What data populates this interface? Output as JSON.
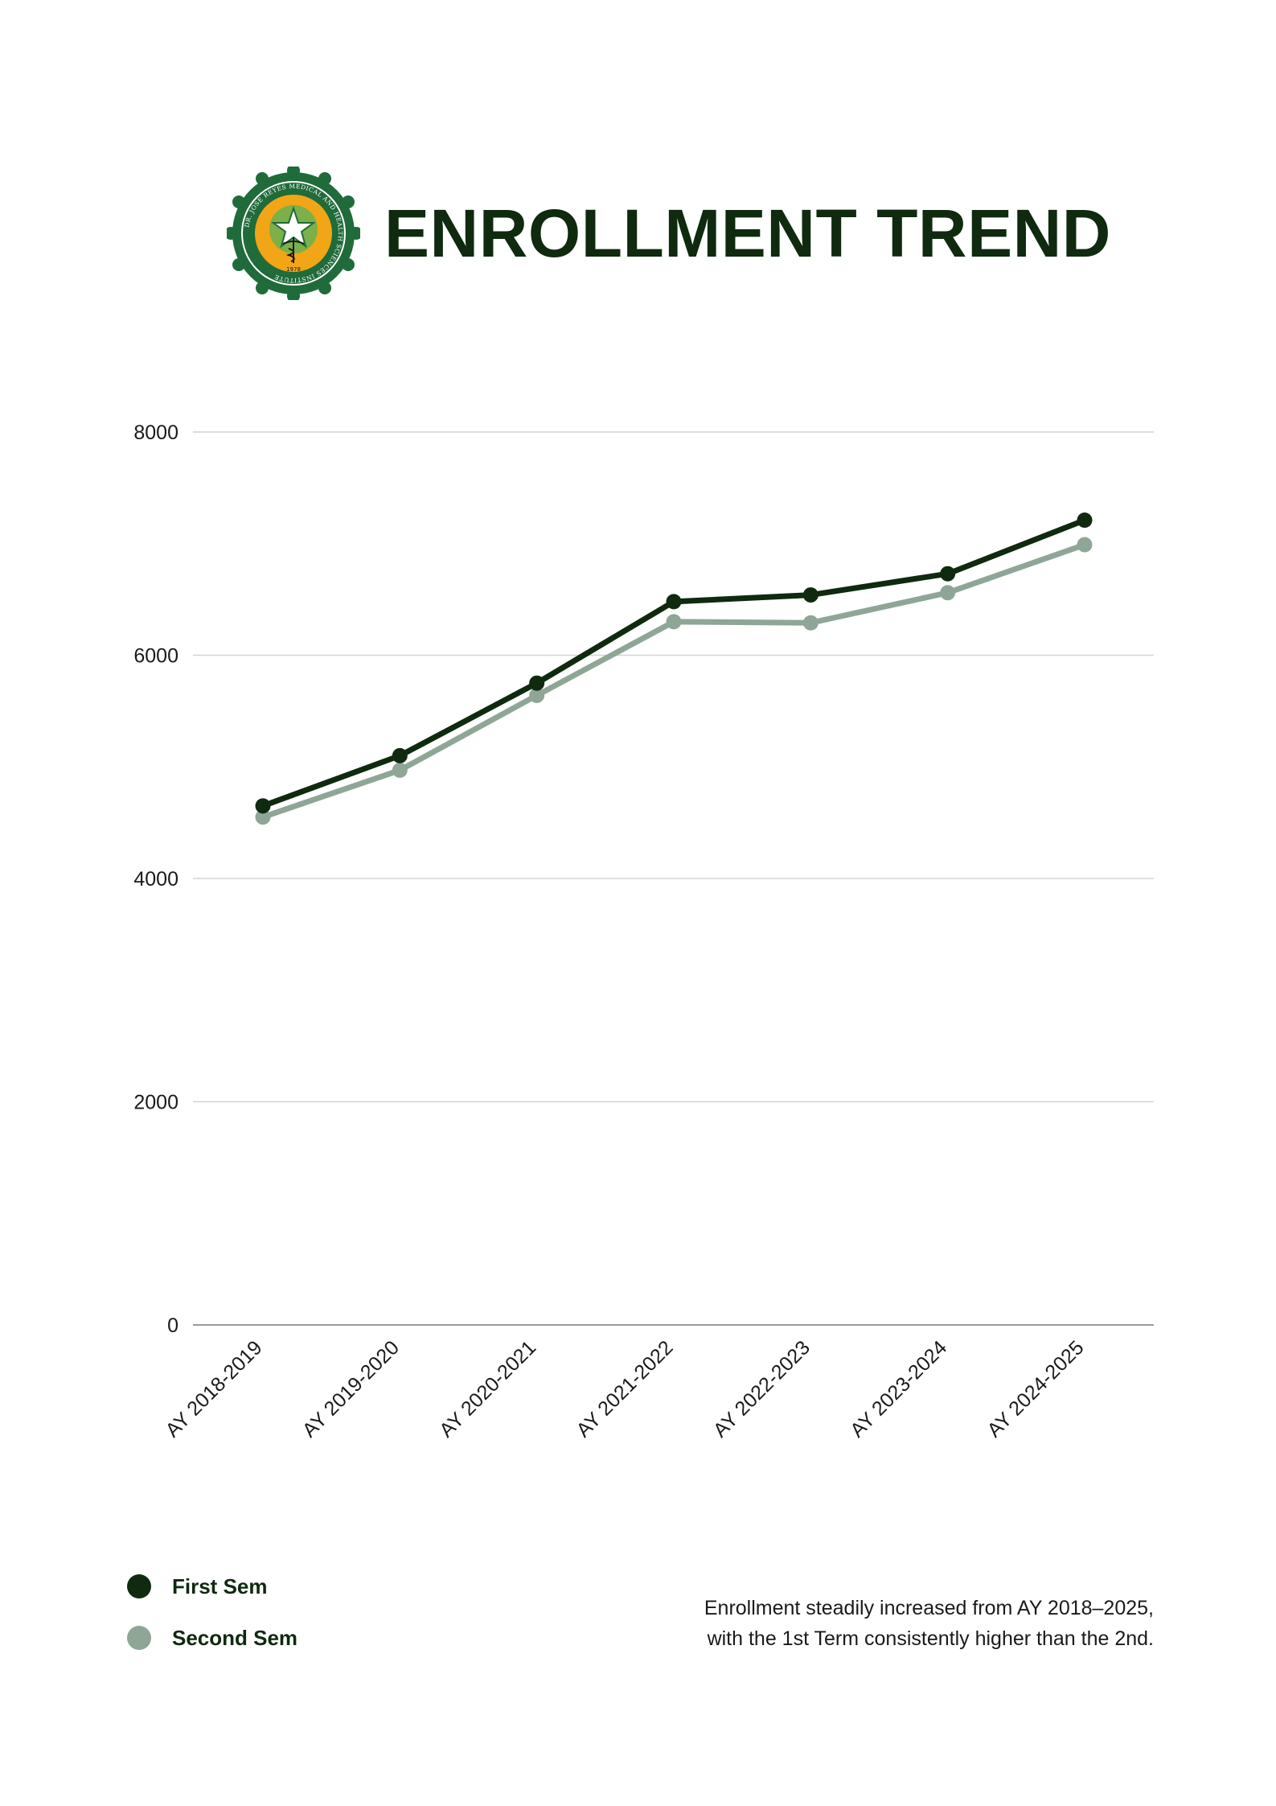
{
  "page": {
    "title": "ENROLLMENT TREND"
  },
  "seal": {
    "ring_text": "DR. JOSE REYES MEDICAL AND HEALTH SCIENCES INSTITUTE",
    "inner_text": "FAITH • SERVICE • COMMUNION • EXCELLENCE FOR LIFE",
    "year": "1978",
    "colors": {
      "outer": "#1f6b3a",
      "inner": "#f2a516",
      "accent": "#7bb04a"
    }
  },
  "chart_data": {
    "type": "line",
    "categories": [
      "AY 2018-2019",
      "AY 2019-2020",
      "AY 2020-2021",
      "AY 2021-2022",
      "AY 2022-2023",
      "AY 2023-2024",
      "AY 2024-2025"
    ],
    "series": [
      {
        "name": "First Sem",
        "color": "#0f2a0f",
        "values": [
          4650,
          5100,
          5750,
          6480,
          6540,
          6730,
          7210
        ]
      },
      {
        "name": "Second Sem",
        "color": "#8fa697",
        "values": [
          4550,
          4970,
          5640,
          6300,
          6290,
          6560,
          6990
        ]
      }
    ],
    "yticks": [
      0,
      2000,
      4000,
      6000,
      8000
    ],
    "ylim": [
      0,
      8000
    ],
    "grid": true,
    "legend": "bottom-left"
  },
  "note": {
    "line1": "Enrollment steadily increased from AY 2018–2025,",
    "line2": "with the 1st Term consistently higher than the 2nd."
  }
}
